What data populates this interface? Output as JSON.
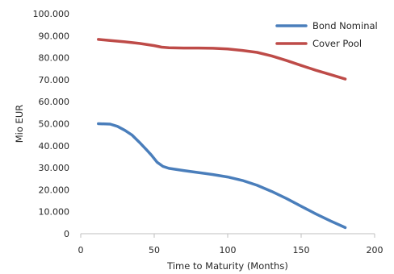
{
  "chart_data": {
    "type": "line",
    "xlabel": "Time to Maturity (Months)",
    "ylabel": "Mio EUR",
    "xlim": [
      0,
      200
    ],
    "ylim": [
      0,
      100000
    ],
    "x_ticks": [
      0,
      50,
      100,
      150,
      200
    ],
    "x_tick_labels": [
      "0",
      "50",
      "100",
      "150",
      "200"
    ],
    "y_ticks": [
      0,
      10000,
      20000,
      30000,
      40000,
      50000,
      60000,
      70000,
      80000,
      90000,
      100000
    ],
    "y_tick_labels": [
      "0",
      "10.000",
      "20.000",
      "30.000",
      "40.000",
      "50.000",
      "60.000",
      "70.000",
      "80.000",
      "90.000",
      "100.000"
    ],
    "grid": false,
    "legend_position": "top-right",
    "series": [
      {
        "name": "Bond Nominal",
        "color": "#4a7ebb",
        "points": [
          [
            12,
            50000
          ],
          [
            20,
            49800
          ],
          [
            25,
            48800
          ],
          [
            30,
            47000
          ],
          [
            35,
            44800
          ],
          [
            40,
            41500
          ],
          [
            45,
            38000
          ],
          [
            48,
            35800
          ],
          [
            52,
            32500
          ],
          [
            56,
            30600
          ],
          [
            60,
            29700
          ],
          [
            70,
            28700
          ],
          [
            80,
            27800
          ],
          [
            90,
            26900
          ],
          [
            100,
            25800
          ],
          [
            110,
            24200
          ],
          [
            120,
            22000
          ],
          [
            130,
            19200
          ],
          [
            140,
            16000
          ],
          [
            150,
            12500
          ],
          [
            160,
            9000
          ],
          [
            170,
            5800
          ],
          [
            180,
            2800
          ]
        ]
      },
      {
        "name": "Cover Pool",
        "color": "#be4b48",
        "points": [
          [
            12,
            88300
          ],
          [
            20,
            87800
          ],
          [
            30,
            87200
          ],
          [
            40,
            86500
          ],
          [
            50,
            85500
          ],
          [
            55,
            84800
          ],
          [
            60,
            84500
          ],
          [
            70,
            84400
          ],
          [
            80,
            84400
          ],
          [
            90,
            84300
          ],
          [
            100,
            84000
          ],
          [
            110,
            83300
          ],
          [
            120,
            82400
          ],
          [
            130,
            80800
          ],
          [
            140,
            78700
          ],
          [
            150,
            76500
          ],
          [
            160,
            74300
          ],
          [
            170,
            72300
          ],
          [
            180,
            70300
          ]
        ]
      }
    ]
  }
}
